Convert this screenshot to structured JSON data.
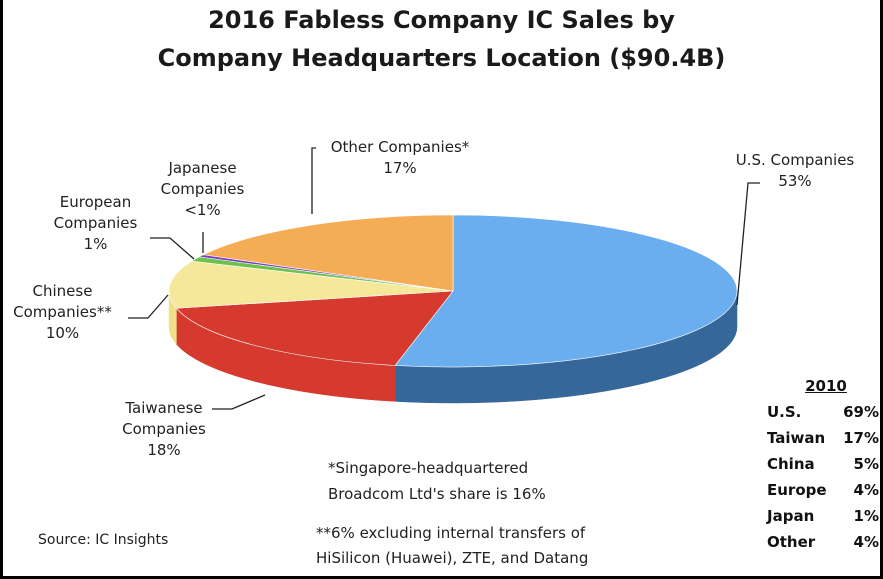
{
  "chart_data": {
    "type": "pie",
    "title": "2016 Fabless Company IC Sales by",
    "subtitle": "Company Headquarters Location ($90.4B)",
    "total_label": "$90.4B",
    "slices": [
      {
        "key": "us",
        "name": "U.S. Companies",
        "value": 53,
        "value_label": "53%",
        "color": "#6aaef0",
        "side_color": "#35679a"
      },
      {
        "key": "taiwan",
        "name": "Taiwanese Companies",
        "value": 18,
        "value_label": "18%",
        "color": "#d63a2f",
        "side_color": "#d63a2f"
      },
      {
        "key": "china",
        "name": "Chinese Companies**",
        "value": 10,
        "value_label": "10%",
        "color": "#f5e89a",
        "side_color": "#f0e08a"
      },
      {
        "key": "europe",
        "name": "European Companies",
        "value": 1,
        "value_label": "1%",
        "color": "#6cc24a",
        "side_color": "#4a9a32"
      },
      {
        "key": "japan",
        "name": "Japanese Companies",
        "value": 0.5,
        "value_label": "<1%",
        "color": "#7a3fc6",
        "side_color": "#5a2a98"
      },
      {
        "key": "other",
        "name": "Other Companies*",
        "value": 17,
        "value_label": "17%",
        "color": "#f4ad55",
        "side_color": "#c98532"
      }
    ]
  },
  "labels": {
    "us": "U.S. Companies\n53%",
    "taiwan": "Taiwanese\nCompanies\n18%",
    "china": "Chinese\nCompanies**\n10%",
    "europe": "European\nCompanies\n1%",
    "japan": "Japanese\nCompanies\n<1%",
    "other": "Other Companies*\n17%"
  },
  "notes": {
    "singapore_line1": "*Singapore-headquartered",
    "singapore_line2": "Broadcom Ltd's share is 16%",
    "hisilicon_line1": "**6% excluding internal transfers of",
    "hisilicon_line2": "HiSilicon (Huawei), ZTE, and Datang",
    "source": "Source: IC Insights"
  },
  "table_2010": {
    "header": "2010",
    "rows": [
      {
        "name": "U.S.",
        "value": "69%"
      },
      {
        "name": "Taiwan",
        "value": "17%"
      },
      {
        "name": "China",
        "value": "5%"
      },
      {
        "name": "Europe",
        "value": "4%"
      },
      {
        "name": "Japan",
        "value": "1%"
      },
      {
        "name": "Other",
        "value": "4%"
      }
    ]
  },
  "colors": {
    "background": "#ffffff",
    "frame": "#000000",
    "text": "#222222"
  }
}
